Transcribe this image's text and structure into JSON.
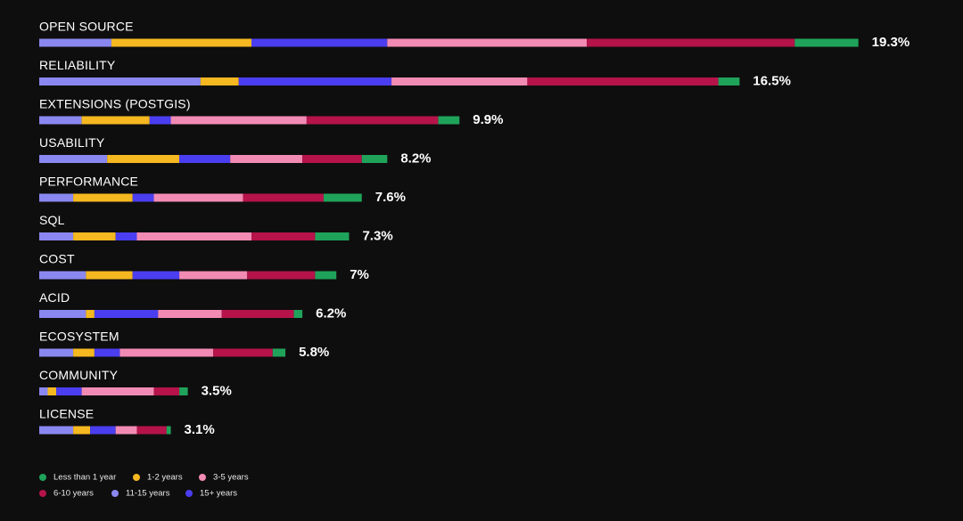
{
  "chart_data": {
    "type": "stacked-bar-horizontal",
    "categories": [
      "OPEN SOURCE",
      "RELIABILITY",
      "EXTENSIONS (POSTGIS)",
      "USABILITY",
      "PERFORMANCE",
      "SQL",
      "COST",
      "ACID",
      "ECOSYSTEM",
      "COMMUNITY",
      "LICENSE"
    ],
    "totals": [
      19.3,
      16.5,
      9.9,
      8.2,
      7.6,
      7.3,
      7,
      6.2,
      5.8,
      3.5,
      3.1
    ],
    "total_labels": [
      "19.3%",
      "16.5%",
      "9.9%",
      "8.2%",
      "7.6%",
      "7.3%",
      "7%",
      "6.2%",
      "5.8%",
      "3.5%",
      "3.1%"
    ],
    "series": [
      {
        "name": "Less than 1 year",
        "color": "#1fa35a",
        "values": [
          1.5,
          0.5,
          0.5,
          0.6,
          0.9,
          0.8,
          0.5,
          0.2,
          0.3,
          0.2,
          0.1
        ]
      },
      {
        "name": "1-2 years",
        "color": "#f5b820",
        "values": [
          3.3,
          0.9,
          1.6,
          1.7,
          1.4,
          1.0,
          1.1,
          0.2,
          0.5,
          0.2,
          0.4
        ]
      },
      {
        "name": "3-5 years",
        "color": "#f28bb4",
        "values": [
          4.7,
          3.2,
          3.2,
          1.7,
          2.1,
          2.7,
          1.6,
          1.5,
          2.2,
          1.7,
          0.5
        ]
      },
      {
        "name": "6-10 years",
        "color": "#b5134a",
        "values": [
          4.9,
          4.5,
          3.1,
          1.4,
          1.9,
          1.5,
          1.6,
          1.7,
          1.4,
          0.6,
          0.7
        ]
      },
      {
        "name": "11-15 years",
        "color": "#8a88f0",
        "values": [
          1.7,
          3.8,
          1.0,
          1.6,
          0.8,
          0.8,
          1.1,
          1.1,
          0.8,
          0.2,
          0.8
        ]
      },
      {
        "name": "15+ years",
        "color": "#4a3ef0",
        "values": [
          3.2,
          3.6,
          0.5,
          1.2,
          0.5,
          0.5,
          1.1,
          1.5,
          0.6,
          0.6,
          0.6
        ]
      }
    ]
  }
}
